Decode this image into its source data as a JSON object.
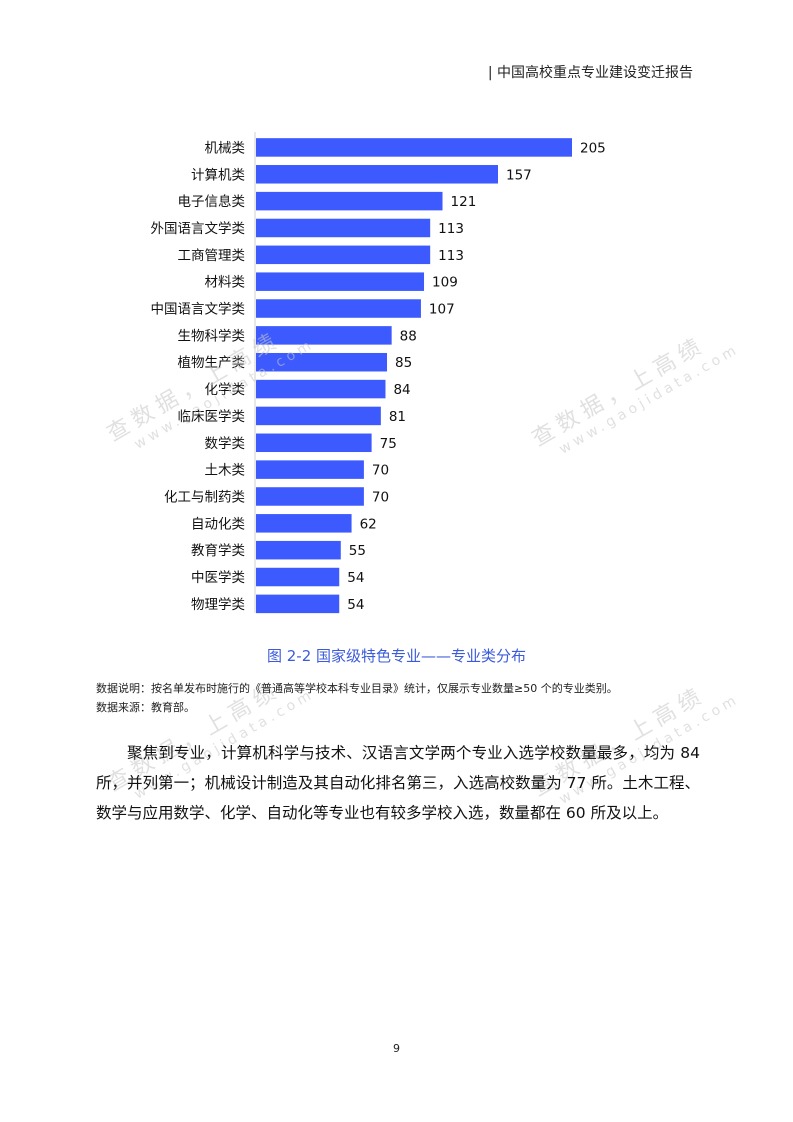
{
  "header": {
    "title": "| 中国高校重点专业建设变迁报告"
  },
  "watermark": {
    "cn": "查数据，上高绩",
    "en": "www.gaojidata.com"
  },
  "chart_data": {
    "type": "bar",
    "orientation": "horizontal",
    "categories": [
      "机械类",
      "计算机类",
      "电子信息类",
      "外国语言文学类",
      "工商管理类",
      "材料类",
      "中国语言文学类",
      "生物科学类",
      "植物生产类",
      "化学类",
      "临床医学类",
      "数学类",
      "土木类",
      "化工与制药类",
      "自动化类",
      "教育学类",
      "中医学类",
      "物理学类"
    ],
    "values": [
      205,
      157,
      121,
      113,
      113,
      109,
      107,
      88,
      85,
      84,
      81,
      75,
      70,
      70,
      62,
      55,
      54,
      54
    ],
    "color": "#3d5afe",
    "xlim": [
      0,
      205
    ]
  },
  "caption": "图 2-2  国家级特色专业——专业类分布",
  "notes": {
    "line1": "数据说明：按名单发布时施行的《普通高等学校本科专业目录》统计，仅展示专业数量≥50 个的专业类别。",
    "line2": "数据来源：教育部。"
  },
  "paragraph": "聚焦到专业，计算机科学与技术、汉语言文学两个专业入选学校数量最多，均为 84 所，并列第一；机械设计制造及其自动化排名第三，入选高校数量为 77 所。土木工程、数学与应用数学、化学、自动化等专业也有较多学校入选，数量都在 60 所及以上。",
  "page_number": "9"
}
